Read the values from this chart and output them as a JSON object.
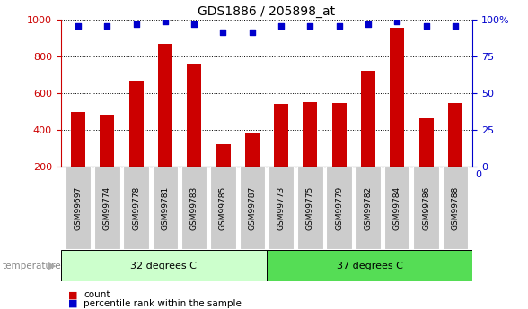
{
  "title": "GDS1886 / 205898_at",
  "categories": [
    "GSM99697",
    "GSM99774",
    "GSM99778",
    "GSM99781",
    "GSM99783",
    "GSM99785",
    "GSM99787",
    "GSM99773",
    "GSM99775",
    "GSM99779",
    "GSM99782",
    "GSM99784",
    "GSM99786",
    "GSM99788"
  ],
  "counts": [
    500,
    487,
    670,
    870,
    760,
    325,
    385,
    543,
    555,
    550,
    725,
    960,
    465,
    550
  ],
  "percentiles": [
    96,
    96,
    97,
    99,
    97,
    92,
    92,
    96,
    96,
    96,
    97,
    99,
    96,
    96
  ],
  "group1_label": "32 degrees C",
  "group2_label": "37 degrees C",
  "group1_count": 7,
  "group2_count": 7,
  "bar_color": "#cc0000",
  "dot_color": "#0000cc",
  "group1_bg": "#ccffcc",
  "group2_bg": "#55dd55",
  "tick_bg": "#cccccc",
  "ylim_left": [
    200,
    1000
  ],
  "ylim_right": [
    0,
    100
  ],
  "yticks_left": [
    200,
    400,
    600,
    800,
    1000
  ],
  "yticks_right": [
    0,
    25,
    50,
    75,
    100
  ],
  "bar_color_left": "#cc0000",
  "dot_color_right": "#0000cc"
}
